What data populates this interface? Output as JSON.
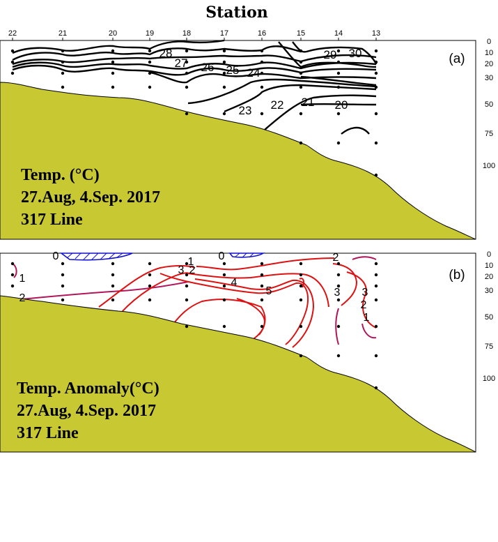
{
  "title": "Station",
  "chart_data": [
    {
      "type": "contour",
      "panel_label": "(a)",
      "stations": [
        "22",
        "21",
        "20",
        "19",
        "18",
        "17",
        "16",
        "15",
        "14",
        "13"
      ],
      "depth_ticks": [
        "0",
        "10",
        "20",
        "30",
        "50",
        "75",
        "100"
      ],
      "contour_labels": [
        "28",
        "27",
        "26",
        "25",
        "24",
        "29",
        "30",
        "23",
        "22",
        "21",
        "20"
      ],
      "annotation": [
        "Temp. (°C)",
        "27.Aug, 4.Sep. 2017",
        "317 Line"
      ],
      "bottom_color": "#c8c832",
      "contour_color": "#000000"
    },
    {
      "type": "contour",
      "panel_label": "(b)",
      "stations": [
        "22",
        "21",
        "20",
        "19",
        "18",
        "17",
        "16",
        "15",
        "14",
        "13"
      ],
      "depth_ticks": [
        "0",
        "10",
        "20",
        "30",
        "50",
        "75",
        "100"
      ],
      "contour_labels": [
        "0",
        "1",
        "2",
        "3",
        "1",
        "2",
        "0",
        "4",
        "5",
        "2",
        "3",
        "3",
        "2",
        "1"
      ],
      "annotation": [
        "Temp. Anomaly(°C)",
        "27.Aug, 4.Sep. 2017",
        "317 Line"
      ],
      "bottom_color": "#c8c832",
      "positive_color": "#dd1111",
      "negative_color": "#1111cc"
    }
  ]
}
